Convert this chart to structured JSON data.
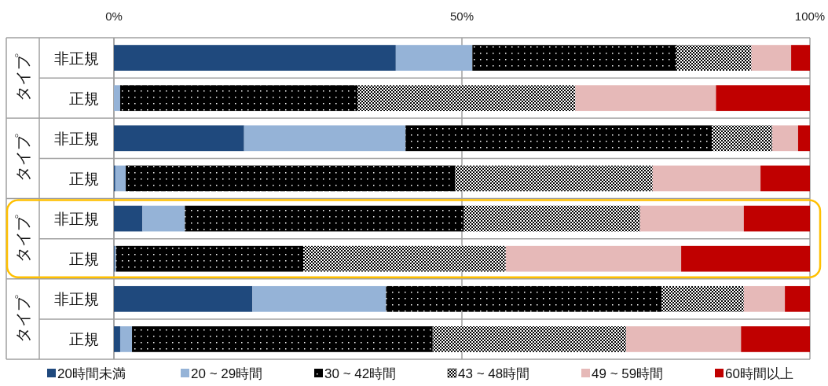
{
  "chart_data": {
    "type": "bar",
    "orientation": "horizontal",
    "stacked": true,
    "categories": [
      "非正規",
      "正規",
      "非正規",
      "正規",
      "非正規",
      "正規",
      "非正規",
      "正規"
    ],
    "annotations": [
      "タイプ",
      "タイプ",
      "タイプ",
      "タイプ"
    ],
    "series": [
      {
        "name": "20時間未満",
        "color": "#1f497d",
        "values": [
          40.5,
          0,
          18.7,
          0.2,
          4.1,
          0.1,
          19.9,
          0.9
        ]
      },
      {
        "name": "20 ~ 29時間",
        "color": "#95b3d7",
        "values": [
          11.0,
          0.9,
          23.2,
          1.5,
          6.1,
          0.2,
          19.2,
          1.7
        ]
      },
      {
        "name": "30 ~ 42時間",
        "color": "#000000",
        "values": [
          29.3,
          34.1,
          44.0,
          47.3,
          40.1,
          26.9,
          39.6,
          43.2
        ]
      },
      {
        "name": "43 ~ 48時間",
        "color": "#000000",
        "values": [
          10.8,
          31.3,
          8.7,
          28.4,
          25.3,
          29.1,
          11.8,
          27.8
        ]
      },
      {
        "name": "49 ~ 59時間",
        "color": "#e6b9b8",
        "values": [
          5.7,
          20.2,
          3.7,
          15.5,
          14.9,
          25.2,
          5.9,
          16.5
        ]
      },
      {
        "name": "60時間以上",
        "color": "#c00000",
        "values": [
          2.7,
          13.5,
          1.7,
          7.1,
          9.5,
          18.5,
          3.6,
          9.9
        ]
      }
    ],
    "xlim": [
      0,
      100
    ],
    "xticks": [
      {
        "value": 0,
        "label": "0%"
      },
      {
        "value": 50,
        "label": "50%"
      },
      {
        "value": 100,
        "label": "100%"
      }
    ],
    "grid": "x",
    "legend": "bottom"
  }
}
